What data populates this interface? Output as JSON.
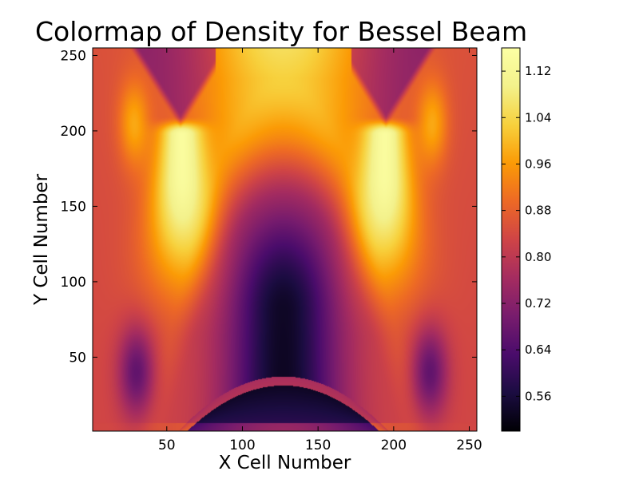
{
  "chart_data": {
    "type": "heatmap",
    "title": "Colormap of Density for Bessel Beam",
    "xlabel": "X Cell Number",
    "ylabel": "Y Cell Number",
    "xlim": [
      1,
      255
    ],
    "ylim": [
      1,
      255
    ],
    "x_ticks": [
      50,
      100,
      150,
      200,
      250
    ],
    "y_ticks": [
      50,
      100,
      150,
      200,
      250
    ],
    "grid": false,
    "colormap": "inferno",
    "colorbar": {
      "range": [
        0.5,
        1.16
      ],
      "ticks": [
        "0.56",
        "0.64",
        "0.72",
        "0.80",
        "0.88",
        "0.96",
        "1.04",
        "1.12"
      ]
    },
    "field_description": "Density field symmetric about x = 127. Bright lobes (~1.1) near x = 60 and x = 195 around y = 150-200; dark minimum (~0.5) near x = 127, y = 40-70; arched boundaries peaking near y = 235 at x = 30 and x = 225."
  }
}
